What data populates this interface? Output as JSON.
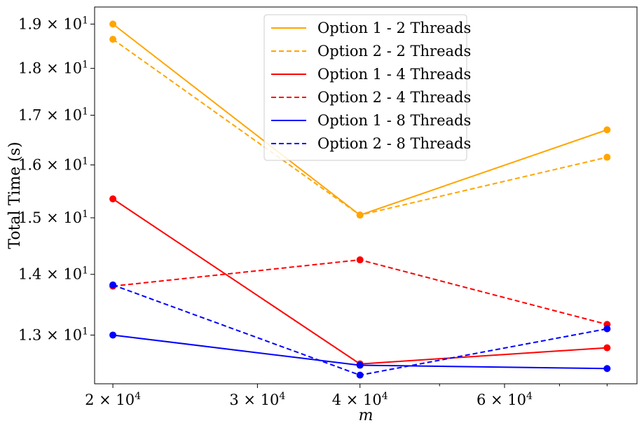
{
  "chart_data": {
    "type": "line",
    "xlabel": "m",
    "ylabel": "Total Time (s)",
    "x_scale": "log",
    "y_scale": "log",
    "xlim": [
      19000,
      87000
    ],
    "ylim": [
      12.25,
      19.4
    ],
    "x": [
      20000,
      40000,
      80000
    ],
    "x_ticks": [
      {
        "value": 20000,
        "mantissa": "2",
        "exp": "4"
      },
      {
        "value": 30000,
        "mantissa": "3",
        "exp": "4"
      },
      {
        "value": 40000,
        "mantissa": "4",
        "exp": "4"
      },
      {
        "value": 60000,
        "mantissa": "6",
        "exp": "4"
      }
    ],
    "x_minor_ticks": [
      50000,
      70000,
      80000
    ],
    "y_ticks": [
      {
        "value": 13,
        "mantissa": "1.3",
        "exp": "1"
      },
      {
        "value": 14,
        "mantissa": "1.4",
        "exp": "1"
      },
      {
        "value": 15,
        "mantissa": "1.5",
        "exp": "1"
      },
      {
        "value": 16,
        "mantissa": "1.6",
        "exp": "1"
      },
      {
        "value": 17,
        "mantissa": "1.7",
        "exp": "1"
      },
      {
        "value": 18,
        "mantissa": "1.8",
        "exp": "1"
      },
      {
        "value": 19,
        "mantissa": "1.9",
        "exp": "1"
      }
    ],
    "series": [
      {
        "name": "Option 1 - 2 Threads",
        "color": "#ffa500",
        "dash": "solid",
        "values": [
          19.0,
          15.05,
          16.7
        ]
      },
      {
        "name": "Option 2 - 2 Threads",
        "color": "#ffa500",
        "dash": "dashed",
        "values": [
          18.65,
          15.05,
          16.15
        ]
      },
      {
        "name": "Option 1 - 4 Threads",
        "color": "#ff0000",
        "dash": "solid",
        "values": [
          15.35,
          12.55,
          12.8
        ]
      },
      {
        "name": "Option 2 - 4 Threads",
        "color": "#ff0000",
        "dash": "dashed",
        "values": [
          13.8,
          14.25,
          13.17
        ]
      },
      {
        "name": "Option 1 - 8 Threads",
        "color": "#0000ff",
        "dash": "solid",
        "values": [
          13.0,
          12.53,
          12.48
        ]
      },
      {
        "name": "Option 2 - 8 Threads",
        "color": "#0000ff",
        "dash": "dashed",
        "values": [
          13.82,
          12.38,
          13.1
        ]
      }
    ],
    "legend_position": "upper-center",
    "grid": false
  }
}
